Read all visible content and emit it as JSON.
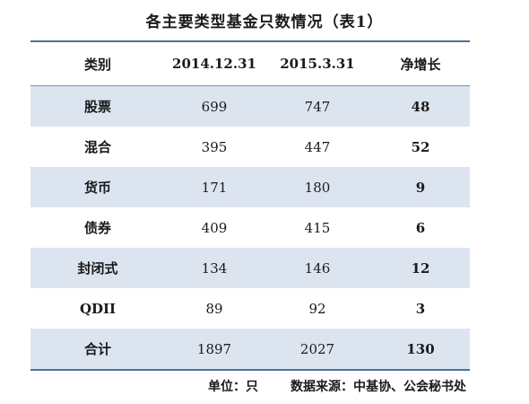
{
  "title": "各主要类型基金只数情况（表1）",
  "table": {
    "headers": [
      "类别",
      "2014.12.31",
      "2015.3.31",
      "净增长"
    ],
    "rows": [
      {
        "category": "股票",
        "v2014": "699",
        "v2015": "747",
        "growth": "48"
      },
      {
        "category": "混合",
        "v2014": "395",
        "v2015": "447",
        "growth": "52"
      },
      {
        "category": "货币",
        "v2014": "171",
        "v2015": "180",
        "growth": "9"
      },
      {
        "category": "债券",
        "v2014": "409",
        "v2015": "415",
        "growth": "6"
      },
      {
        "category": "封闭式",
        "v2014": "134",
        "v2015": "146",
        "growth": "12"
      },
      {
        "category": "QDII",
        "v2014": "89",
        "v2015": "92",
        "growth": "3"
      },
      {
        "category": "合计",
        "v2014": "1897",
        "v2015": "2027",
        "growth": "130"
      }
    ],
    "shading_color": "#dce4f0",
    "rule_color": "#4f6f98"
  },
  "footer": {
    "unit": "单位：只",
    "source": "数据来源：中基协、公会秘书处"
  }
}
